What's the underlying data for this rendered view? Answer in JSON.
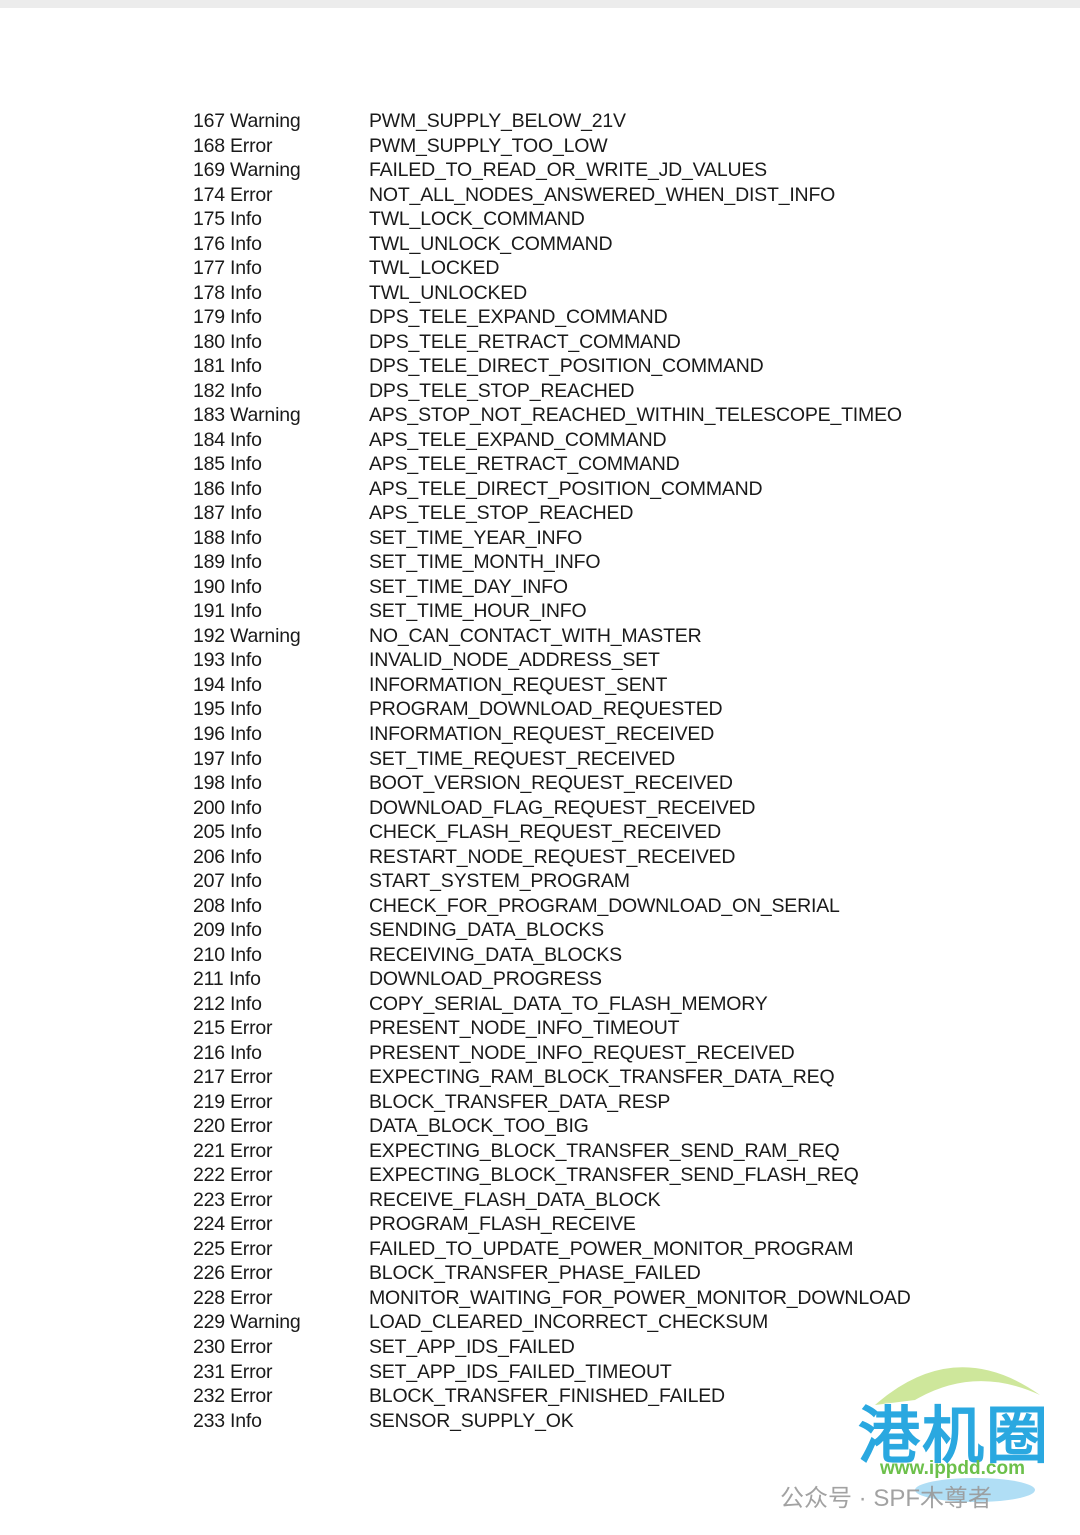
{
  "rows": [
    [
      "167",
      "Warning",
      "PWM_SUPPLY_BELOW_21V"
    ],
    [
      "168",
      "Error",
      "PWM_SUPPLY_TOO_LOW"
    ],
    [
      "169",
      "Warning",
      "FAILED_TO_READ_OR_WRITE_JD_VALUES"
    ],
    [
      "174",
      "Error",
      "NOT_ALL_NODES_ANSWERED_WHEN_DIST_INFO"
    ],
    [
      "175",
      "Info",
      "TWL_LOCK_COMMAND"
    ],
    [
      "176",
      "Info",
      "TWL_UNLOCK_COMMAND"
    ],
    [
      "177",
      "Info",
      "TWL_LOCKED"
    ],
    [
      "178",
      "Info",
      "TWL_UNLOCKED"
    ],
    [
      "179",
      "Info",
      "DPS_TELE_EXPAND_COMMAND"
    ],
    [
      "180",
      "Info",
      "DPS_TELE_RETRACT_COMMAND"
    ],
    [
      "181",
      "Info",
      "DPS_TELE_DIRECT_POSITION_COMMAND"
    ],
    [
      "182",
      "Info",
      "DPS_TELE_STOP_REACHED"
    ],
    [
      "183",
      "Warning",
      "APS_STOP_NOT_REACHED_WITHIN_TELESCOPE_TIMEO"
    ],
    [
      "184",
      "Info",
      "APS_TELE_EXPAND_COMMAND"
    ],
    [
      "185",
      "Info",
      "APS_TELE_RETRACT_COMMAND"
    ],
    [
      "186",
      "Info",
      "APS_TELE_DIRECT_POSITION_COMMAND"
    ],
    [
      "187",
      "Info",
      "APS_TELE_STOP_REACHED"
    ],
    [
      "188",
      "Info",
      "SET_TIME_YEAR_INFO"
    ],
    [
      "189",
      "Info",
      "SET_TIME_MONTH_INFO"
    ],
    [
      "190",
      "Info",
      "SET_TIME_DAY_INFO"
    ],
    [
      "191",
      "Info",
      "SET_TIME_HOUR_INFO"
    ],
    [
      "192",
      "Warning",
      "NO_CAN_CONTACT_WITH_MASTER"
    ],
    [
      "193",
      "Info",
      "INVALID_NODE_ADDRESS_SET"
    ],
    [
      "194",
      "Info",
      "INFORMATION_REQUEST_SENT"
    ],
    [
      "195",
      "Info",
      "PROGRAM_DOWNLOAD_REQUESTED"
    ],
    [
      "196",
      "Info",
      "INFORMATION_REQUEST_RECEIVED"
    ],
    [
      "197",
      "Info",
      "SET_TIME_REQUEST_RECEIVED"
    ],
    [
      "198",
      "Info",
      "BOOT_VERSION_REQUEST_RECEIVED"
    ],
    [
      "200",
      "Info",
      "DOWNLOAD_FLAG_REQUEST_RECEIVED"
    ],
    [
      "205",
      "Info",
      "CHECK_FLASH_REQUEST_RECEIVED"
    ],
    [
      "206",
      "Info",
      "RESTART_NODE_REQUEST_RECEIVED"
    ],
    [
      "207",
      "Info",
      "START_SYSTEM_PROGRAM"
    ],
    [
      "208",
      "Info",
      "CHECK_FOR_PROGRAM_DOWNLOAD_ON_SERIAL"
    ],
    [
      "209",
      "Info",
      "SENDING_DATA_BLOCKS"
    ],
    [
      "210",
      "Info",
      "RECEIVING_DATA_BLOCKS"
    ],
    [
      "211",
      "Info",
      "DOWNLOAD_PROGRESS"
    ],
    [
      "212",
      "Info",
      "COPY_SERIAL_DATA_TO_FLASH_MEMORY"
    ],
    [
      "215",
      "Error",
      "PRESENT_NODE_INFO_TIMEOUT"
    ],
    [
      "216",
      "Info",
      "PRESENT_NODE_INFO_REQUEST_RECEIVED"
    ],
    [
      "217",
      "Error",
      "EXPECTING_RAM_BLOCK_TRANSFER_DATA_REQ"
    ],
    [
      "219",
      "Error",
      "BLOCK_TRANSFER_DATA_RESP"
    ],
    [
      "220",
      "Error",
      "DATA_BLOCK_TOO_BIG"
    ],
    [
      "221",
      "Error",
      "EXPECTING_BLOCK_TRANSFER_SEND_RAM_REQ"
    ],
    [
      "222",
      "Error",
      "EXPECTING_BLOCK_TRANSFER_SEND_FLASH_REQ"
    ],
    [
      "223",
      "Error",
      "RECEIVE_FLASH_DATA_BLOCK"
    ],
    [
      "224",
      "Error",
      "PROGRAM_FLASH_RECEIVE"
    ],
    [
      "225",
      "Error",
      "FAILED_TO_UPDATE_POWER_MONITOR_PROGRAM"
    ],
    [
      "226",
      "Error",
      "BLOCK_TRANSFER_PHASE_FAILED"
    ],
    [
      "228",
      "Error",
      "MONITOR_WAITING_FOR_POWER_MONITOR_DOWNLOAD"
    ],
    [
      "229",
      "Warning",
      "LOAD_CLEARED_INCORRECT_CHECKSUM"
    ],
    [
      "230",
      "Error",
      "SET_APP_IDS_FAILED"
    ],
    [
      "231",
      "Error",
      "SET_APP_IDS_FAILED_TIMEOUT"
    ],
    [
      "232",
      "Error",
      "BLOCK_TRANSFER_FINISHED_FAILED"
    ],
    [
      "233",
      "Info",
      "SENSOR_SUPPLY_OK"
    ]
  ],
  "watermark": {
    "logo": "港机圈",
    "url": "www.ippdd.com",
    "account": "公众号 · SPF木尊者"
  }
}
